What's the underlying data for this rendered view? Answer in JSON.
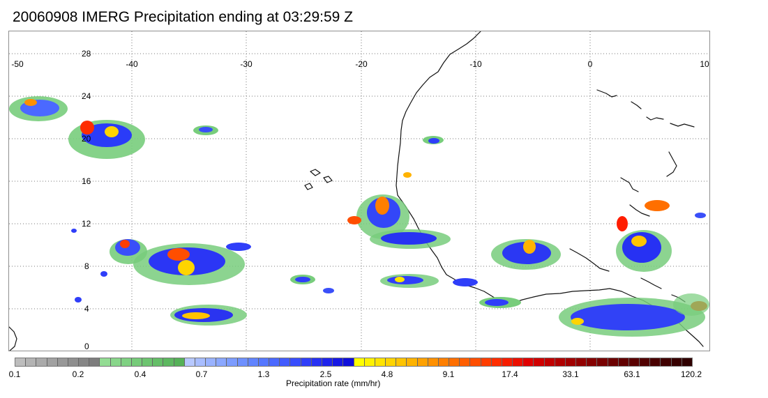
{
  "title": "20060908 IMERG Precipitation ending at 03:29:59 Z",
  "map": {
    "longitude_labels": [
      "-50",
      "-40",
      "-30",
      "-20",
      "-10",
      "0",
      "10"
    ],
    "latitude_labels": [
      "28",
      "24",
      "20",
      "16",
      "12",
      "8",
      "4",
      "0"
    ]
  },
  "colorbar": {
    "label": "Precipitation rate (mm/hr)",
    "tick_labels": [
      "0.1",
      "0.2",
      "0.4",
      "0.7",
      "1.3",
      "2.5",
      "4.8",
      "9.1",
      "17.4",
      "33.1",
      "63.1",
      "120.2"
    ],
    "colors": [
      "#bdbdbd",
      "#b3b3b3",
      "#aaaaaa",
      "#a1a1a1",
      "#989898",
      "#8f8f8f",
      "#868686",
      "#7d7d7d",
      "#93dc93",
      "#88d68a",
      "#7fd182",
      "#76cb79",
      "#6dc470",
      "#65be68",
      "#5db860",
      "#55b158",
      "#b7c8ff",
      "#a8bdff",
      "#99b2ff",
      "#8aa7ff",
      "#7c9cff",
      "#6e90ff",
      "#6184ff",
      "#5577ff",
      "#4b69ff",
      "#425bfe",
      "#384dfd",
      "#2f3ef9",
      "#2731f3",
      "#1f24ec",
      "#1718e4",
      "#0f0fdb",
      "#ffff00",
      "#fff200",
      "#ffe400",
      "#ffd400",
      "#ffc400",
      "#ffb300",
      "#ffa100",
      "#ff9000",
      "#ff7f00",
      "#ff6f00",
      "#ff5e00",
      "#ff4e00",
      "#ff3d00",
      "#ff2d00",
      "#f71d00",
      "#ec1000",
      "#e00000",
      "#d00000",
      "#c10000",
      "#b10000",
      "#a20000",
      "#930000",
      "#850000",
      "#780000",
      "#6b0000",
      "#620000",
      "#5a0000",
      "#510000",
      "#490000",
      "#400000",
      "#380000",
      "#300000"
    ]
  }
}
